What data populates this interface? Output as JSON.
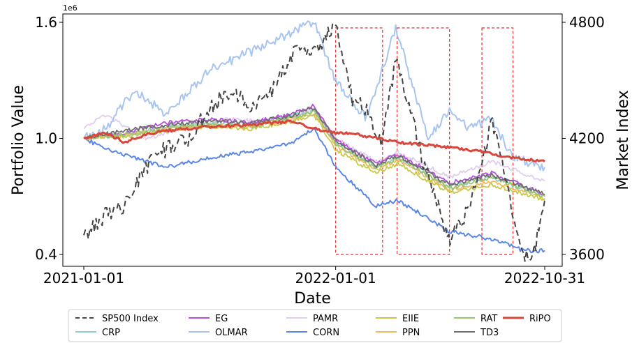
{
  "chart_data": {
    "type": "line",
    "xlabel": "Date",
    "ylabel": "Portfolio Value",
    "y2label": "Market Index",
    "y_scale_text": "1e6",
    "x_ticks": [
      "2021-01-01",
      "2022-01-01",
      "2022-10-31"
    ],
    "x_range": [
      "2021-01-01",
      "2022-10-31"
    ],
    "y_ticks": [
      "0.4",
      "1.0",
      "1.6"
    ],
    "ylim": [
      0.4,
      1.6
    ],
    "y2_ticks": [
      "3600",
      "4200",
      "4800"
    ],
    "y2lim": [
      3600,
      4800
    ],
    "legend_position": "bottom",
    "highlight_windows": [
      [
        "2022-01-01",
        "2022-03-10"
      ],
      [
        "2022-03-31",
        "2022-06-15"
      ],
      [
        "2022-08-01",
        "2022-09-15"
      ]
    ],
    "series": [
      {
        "name": "SP500 Index",
        "color": "#444444",
        "dash": true,
        "width": 2,
        "axis": "right",
        "points": [
          [
            "2021-01-01",
            3700
          ],
          [
            "2021-02-01",
            3800
          ],
          [
            "2021-03-01",
            3850
          ],
          [
            "2021-04-01",
            4050
          ],
          [
            "2021-05-01",
            4150
          ],
          [
            "2021-06-01",
            4200
          ],
          [
            "2021-07-01",
            4350
          ],
          [
            "2021-08-01",
            4450
          ],
          [
            "2021-09-01",
            4350
          ],
          [
            "2021-10-01",
            4450
          ],
          [
            "2021-11-01",
            4650
          ],
          [
            "2021-12-01",
            4650
          ],
          [
            "2022-01-01",
            4790
          ],
          [
            "2022-01-25",
            4400
          ],
          [
            "2022-02-15",
            4350
          ],
          [
            "2022-03-08",
            4180
          ],
          [
            "2022-03-29",
            4600
          ],
          [
            "2022-04-15",
            4400
          ],
          [
            "2022-05-10",
            4050
          ],
          [
            "2022-06-16",
            3670
          ],
          [
            "2022-07-15",
            3850
          ],
          [
            "2022-08-16",
            4300
          ],
          [
            "2022-09-06",
            3950
          ],
          [
            "2022-09-30",
            3600
          ],
          [
            "2022-10-14",
            3580
          ],
          [
            "2022-10-31",
            3880
          ]
        ]
      },
      {
        "name": "CRP",
        "color": "#8fcfc9",
        "dash": false,
        "width": 1.8,
        "axis": "left",
        "points": [
          [
            "2021-01-01",
            1.0
          ],
          [
            "2021-03-01",
            1.02
          ],
          [
            "2021-05-01",
            1.06
          ],
          [
            "2021-07-01",
            1.08
          ],
          [
            "2021-09-01",
            1.07
          ],
          [
            "2021-11-01",
            1.12
          ],
          [
            "2021-12-01",
            1.14
          ],
          [
            "2022-01-01",
            0.98
          ],
          [
            "2022-03-01",
            0.85
          ],
          [
            "2022-04-01",
            0.9
          ],
          [
            "2022-06-15",
            0.75
          ],
          [
            "2022-08-15",
            0.8
          ],
          [
            "2022-10-31",
            0.7
          ]
        ]
      },
      {
        "name": "EG",
        "color": "#b84fe0",
        "dash": false,
        "width": 1.8,
        "axis": "left",
        "points": [
          [
            "2021-01-01",
            1.0
          ],
          [
            "2021-03-01",
            1.03
          ],
          [
            "2021-05-01",
            1.08
          ],
          [
            "2021-07-01",
            1.1
          ],
          [
            "2021-09-01",
            1.08
          ],
          [
            "2021-11-01",
            1.13
          ],
          [
            "2021-12-01",
            1.17
          ],
          [
            "2022-01-01",
            0.99
          ],
          [
            "2022-03-01",
            0.87
          ],
          [
            "2022-04-01",
            0.92
          ],
          [
            "2022-06-15",
            0.77
          ],
          [
            "2022-08-15",
            0.82
          ],
          [
            "2022-10-31",
            0.71
          ]
        ]
      },
      {
        "name": "OLMAR",
        "color": "#a8c4f0",
        "dash": false,
        "width": 2,
        "axis": "left",
        "points": [
          [
            "2021-01-01",
            1.0
          ],
          [
            "2021-02-01",
            1.05
          ],
          [
            "2021-03-15",
            1.25
          ],
          [
            "2021-05-01",
            1.12
          ],
          [
            "2021-07-01",
            1.35
          ],
          [
            "2021-09-01",
            1.45
          ],
          [
            "2021-11-01",
            1.55
          ],
          [
            "2021-12-01",
            1.6
          ],
          [
            "2022-01-01",
            1.3
          ],
          [
            "2022-02-15",
            1.1
          ],
          [
            "2022-03-01",
            1.25
          ],
          [
            "2022-03-29",
            1.58
          ],
          [
            "2022-04-20",
            1.3
          ],
          [
            "2022-05-15",
            1.0
          ],
          [
            "2022-06-15",
            1.15
          ],
          [
            "2022-07-15",
            1.05
          ],
          [
            "2022-08-15",
            1.1
          ],
          [
            "2022-09-15",
            0.9
          ],
          [
            "2022-10-31",
            0.85
          ]
        ]
      },
      {
        "name": "CORN",
        "color": "#5a86e8",
        "dash": false,
        "width": 2,
        "axis": "left",
        "points": [
          [
            "2021-01-01",
            1.0
          ],
          [
            "2021-02-01",
            0.95
          ],
          [
            "2021-04-01",
            0.88
          ],
          [
            "2021-05-01",
            0.85
          ],
          [
            "2021-07-01",
            0.9
          ],
          [
            "2021-09-01",
            0.93
          ],
          [
            "2021-11-01",
            0.98
          ],
          [
            "2021-12-01",
            1.05
          ],
          [
            "2022-01-01",
            0.85
          ],
          [
            "2022-03-01",
            0.65
          ],
          [
            "2022-04-01",
            0.68
          ],
          [
            "2022-06-15",
            0.52
          ],
          [
            "2022-08-15",
            0.48
          ],
          [
            "2022-09-30",
            0.42
          ],
          [
            "2022-10-31",
            0.42
          ]
        ]
      },
      {
        "name": "PAMR",
        "color": "#e0cdee",
        "dash": false,
        "width": 1.8,
        "axis": "left",
        "points": [
          [
            "2021-01-01",
            1.05
          ],
          [
            "2021-02-01",
            1.12
          ],
          [
            "2021-04-01",
            1.0
          ],
          [
            "2021-06-01",
            1.06
          ],
          [
            "2021-08-01",
            1.1
          ],
          [
            "2021-10-01",
            1.08
          ],
          [
            "2021-12-01",
            1.15
          ],
          [
            "2022-01-01",
            1.0
          ],
          [
            "2022-03-01",
            0.88
          ],
          [
            "2022-04-01",
            0.93
          ],
          [
            "2022-06-15",
            0.8
          ],
          [
            "2022-08-15",
            0.88
          ],
          [
            "2022-10-31",
            0.78
          ]
        ]
      },
      {
        "name": "PPN",
        "color": "#f2b962",
        "dash": false,
        "width": 1.8,
        "axis": "left",
        "points": [
          [
            "2021-01-01",
            1.0
          ],
          [
            "2021-03-01",
            1.02
          ],
          [
            "2021-05-01",
            1.05
          ],
          [
            "2021-07-01",
            1.07
          ],
          [
            "2021-09-01",
            1.06
          ],
          [
            "2021-11-01",
            1.1
          ],
          [
            "2021-12-01",
            1.13
          ],
          [
            "2022-01-01",
            0.96
          ],
          [
            "2022-03-01",
            0.84
          ],
          [
            "2022-04-01",
            0.89
          ],
          [
            "2022-06-15",
            0.73
          ],
          [
            "2022-08-15",
            0.78
          ],
          [
            "2022-10-31",
            0.69
          ]
        ]
      },
      {
        "name": "EIIE",
        "color": "#c8c94a",
        "dash": false,
        "width": 1.8,
        "axis": "left",
        "points": [
          [
            "2021-01-01",
            1.0
          ],
          [
            "2021-03-01",
            1.01
          ],
          [
            "2021-05-01",
            1.04
          ],
          [
            "2021-07-01",
            1.06
          ],
          [
            "2021-09-01",
            1.05
          ],
          [
            "2021-11-01",
            1.09
          ],
          [
            "2021-12-01",
            1.12
          ],
          [
            "2022-01-01",
            0.94
          ],
          [
            "2022-03-01",
            0.82
          ],
          [
            "2022-04-01",
            0.87
          ],
          [
            "2022-06-15",
            0.72
          ],
          [
            "2022-08-15",
            0.76
          ],
          [
            "2022-10-31",
            0.68
          ]
        ]
      },
      {
        "name": "RAT",
        "color": "#9cc46a",
        "dash": false,
        "width": 1.8,
        "axis": "left",
        "points": [
          [
            "2021-01-01",
            1.0
          ],
          [
            "2021-03-01",
            1.02
          ],
          [
            "2021-05-01",
            1.05
          ],
          [
            "2021-07-01",
            1.07
          ],
          [
            "2021-09-01",
            1.06
          ],
          [
            "2021-11-01",
            1.11
          ],
          [
            "2021-12-01",
            1.14
          ],
          [
            "2022-01-01",
            0.97
          ],
          [
            "2022-03-01",
            0.85
          ],
          [
            "2022-04-01",
            0.9
          ],
          [
            "2022-06-15",
            0.74
          ],
          [
            "2022-08-15",
            0.8
          ],
          [
            "2022-10-31",
            0.7
          ]
        ]
      },
      {
        "name": "TD3",
        "color": "#6e6e6e",
        "dash": false,
        "width": 1.8,
        "axis": "left",
        "points": [
          [
            "2021-01-01",
            1.0
          ],
          [
            "2021-03-01",
            1.04
          ],
          [
            "2021-05-01",
            1.07
          ],
          [
            "2021-07-01",
            1.09
          ],
          [
            "2021-09-01",
            1.08
          ],
          [
            "2021-11-01",
            1.12
          ],
          [
            "2021-12-01",
            1.16
          ],
          [
            "2022-01-01",
            0.99
          ],
          [
            "2022-03-01",
            0.86
          ],
          [
            "2022-04-01",
            0.91
          ],
          [
            "2022-06-15",
            0.76
          ],
          [
            "2022-08-15",
            0.81
          ],
          [
            "2022-10-31",
            0.71
          ]
        ]
      },
      {
        "name": "RiPO",
        "color": "#d9473c",
        "dash": false,
        "width": 3,
        "axis": "left",
        "points": [
          [
            "2021-01-01",
            1.0
          ],
          [
            "2021-02-01",
            1.03
          ],
          [
            "2021-03-01",
            0.98
          ],
          [
            "2021-04-01",
            1.02
          ],
          [
            "2021-05-01",
            1.04
          ],
          [
            "2021-07-01",
            1.06
          ],
          [
            "2021-09-01",
            1.07
          ],
          [
            "2021-11-01",
            1.09
          ],
          [
            "2021-12-01",
            1.05
          ],
          [
            "2022-01-01",
            1.03
          ],
          [
            "2022-02-01",
            1.02
          ],
          [
            "2022-04-01",
            0.98
          ],
          [
            "2022-06-01",
            0.96
          ],
          [
            "2022-08-01",
            0.93
          ],
          [
            "2022-09-15",
            0.9
          ],
          [
            "2022-10-31",
            0.88
          ]
        ]
      }
    ]
  }
}
